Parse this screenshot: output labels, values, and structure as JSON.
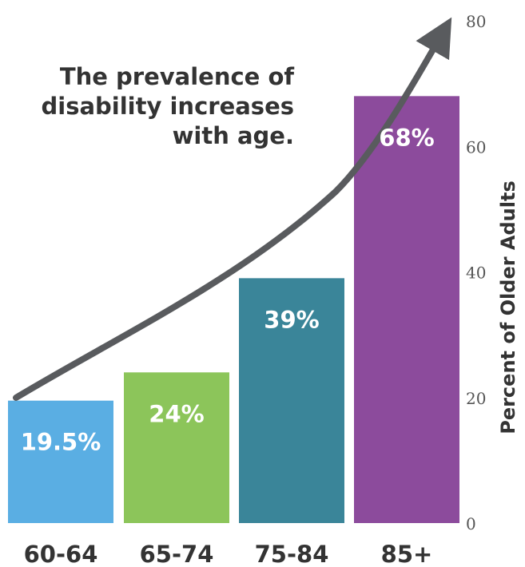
{
  "headline": {
    "line1": "The prevalence of",
    "line2": "disability increases",
    "line3": "with age."
  },
  "chart_data": {
    "type": "bar",
    "title": "The prevalence of disability increases with age.",
    "xlabel": "",
    "ylabel": "Percent of Older Adults",
    "categories": [
      "60-64",
      "65-74",
      "75-84",
      "85+"
    ],
    "values": [
      19.5,
      24,
      39,
      68
    ],
    "value_labels": [
      "19.5%",
      "24%",
      "39%",
      "68%"
    ],
    "ylim": [
      0,
      80
    ],
    "y_ticks": [
      0,
      20,
      40,
      60,
      80
    ],
    "y_axis_position": "right",
    "grid": false,
    "legend": "none",
    "bar_colors": [
      "#5aaee3",
      "#8cc55a",
      "#3a8599",
      "#8c4b9c"
    ],
    "trend_arrow_color": "#595b5e"
  }
}
